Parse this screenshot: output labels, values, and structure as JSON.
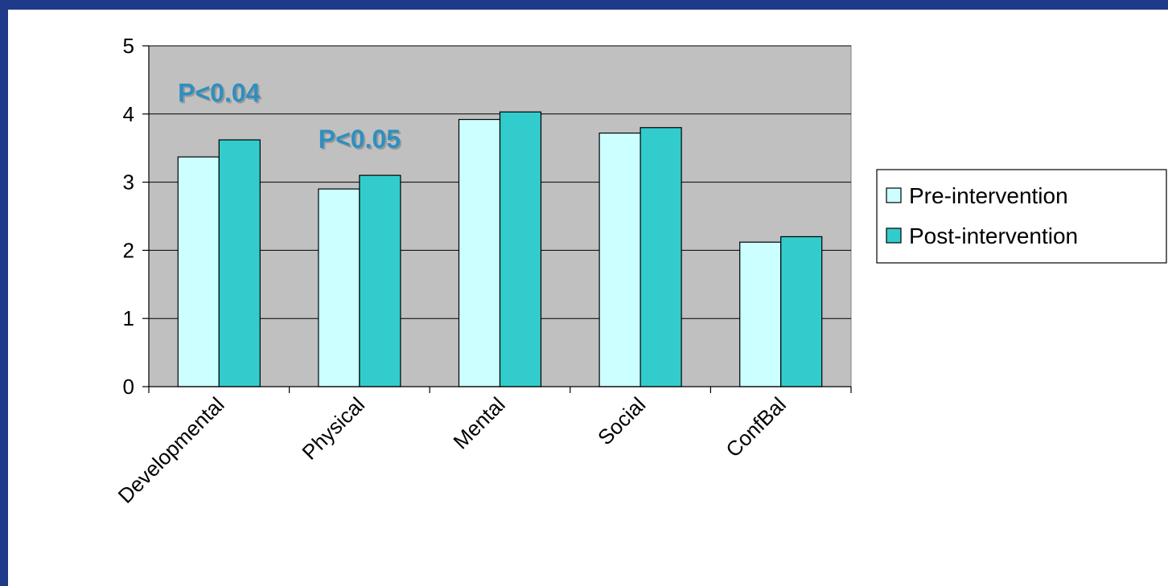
{
  "chart_data": {
    "type": "bar",
    "categories": [
      "Developmental",
      "Physical",
      "Mental",
      "Social",
      "ConfBal"
    ],
    "series": [
      {
        "name": "Pre-intervention",
        "values": [
          3.37,
          2.9,
          3.92,
          3.72,
          2.12
        ],
        "color": "#ccffff"
      },
      {
        "name": "Post-intervention",
        "values": [
          3.62,
          3.1,
          4.03,
          3.8,
          2.2
        ],
        "color": "#33cccc"
      }
    ],
    "ylim": [
      0,
      5
    ],
    "yticks": [
      0,
      1,
      2,
      3,
      4,
      5
    ],
    "grid": true,
    "plot_background": "#c0c0c0",
    "legend_position": "right",
    "annotations": [
      {
        "text": "P<0.04",
        "category": "Developmental",
        "y": 4.18
      },
      {
        "text": "P<0.05",
        "category": "Physical",
        "y": 3.5
      }
    ],
    "title": "",
    "xlabel": "",
    "ylabel": ""
  }
}
